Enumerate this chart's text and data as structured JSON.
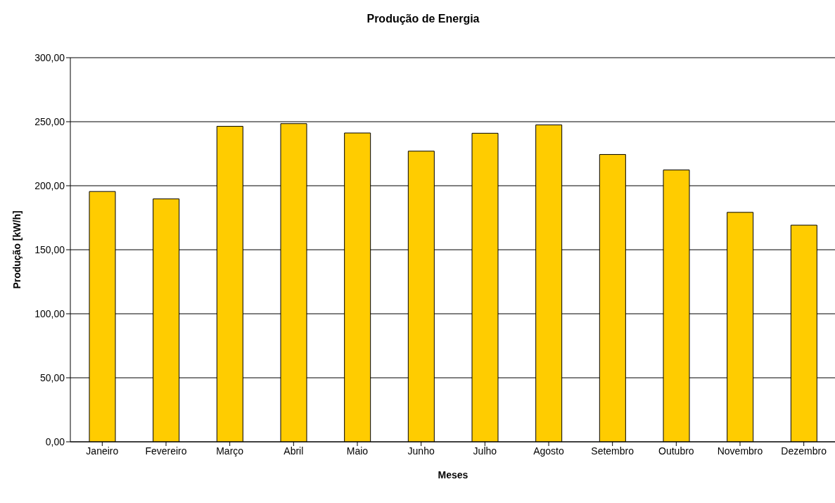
{
  "chart_data": {
    "type": "bar",
    "title": "Produção de Energia",
    "xlabel": "Meses",
    "ylabel": "Produção [kW/h]",
    "categories": [
      "Janeiro",
      "Fevereiro",
      "Março",
      "Abril",
      "Maio",
      "Junho",
      "Julho",
      "Agosto",
      "Setembro",
      "Outubro",
      "Novembro",
      "Dezembro"
    ],
    "values": [
      195.5,
      189.7,
      246.4,
      248.5,
      241.2,
      227,
      241,
      247.5,
      224.4,
      212.3,
      179.2,
      169.2
    ],
    "color": "#ffcc00",
    "ylim": [
      0,
      300
    ],
    "yticks": [
      {
        "value": 0,
        "label": "0,00"
      },
      {
        "value": 50,
        "label": "50,00"
      },
      {
        "value": 100,
        "label": "100,00"
      },
      {
        "value": 150,
        "label": "150,00"
      },
      {
        "value": 200,
        "label": "200,00"
      },
      {
        "value": 250,
        "label": "250,00"
      },
      {
        "value": 300,
        "label": "300,00"
      }
    ],
    "grid": "y",
    "legend": false
  }
}
